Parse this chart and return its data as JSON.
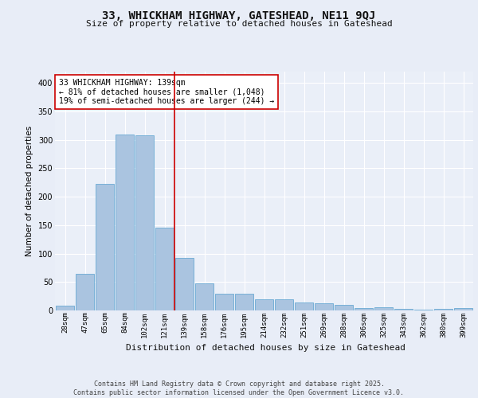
{
  "title1": "33, WHICKHAM HIGHWAY, GATESHEAD, NE11 9QJ",
  "title2": "Size of property relative to detached houses in Gateshead",
  "xlabel": "Distribution of detached houses by size in Gateshead",
  "ylabel": "Number of detached properties",
  "categories": [
    "28sqm",
    "47sqm",
    "65sqm",
    "84sqm",
    "102sqm",
    "121sqm",
    "139sqm",
    "158sqm",
    "176sqm",
    "195sqm",
    "214sqm",
    "232sqm",
    "251sqm",
    "269sqm",
    "288sqm",
    "306sqm",
    "325sqm",
    "343sqm",
    "362sqm",
    "380sqm",
    "399sqm"
  ],
  "values": [
    8,
    65,
    222,
    310,
    308,
    145,
    93,
    48,
    30,
    30,
    19,
    20,
    14,
    13,
    10,
    4,
    5,
    3,
    2,
    3,
    4
  ],
  "bar_color": "#aac4e0",
  "bar_edge_color": "#6aaad4",
  "vline_color": "#cc0000",
  "annotation_text": "33 WHICKHAM HIGHWAY: 139sqm\n← 81% of detached houses are smaller (1,048)\n19% of semi-detached houses are larger (244) →",
  "annotation_box_color": "#ffffff",
  "annotation_box_edge": "#cc0000",
  "background_color": "#e8edf7",
  "plot_bg_color": "#eaeff8",
  "grid_color": "#ffffff",
  "footer": "Contains HM Land Registry data © Crown copyright and database right 2025.\nContains public sector information licensed under the Open Government Licence v3.0.",
  "ylim": [
    0,
    420
  ],
  "yticks": [
    0,
    50,
    100,
    150,
    200,
    250,
    300,
    350,
    400
  ]
}
